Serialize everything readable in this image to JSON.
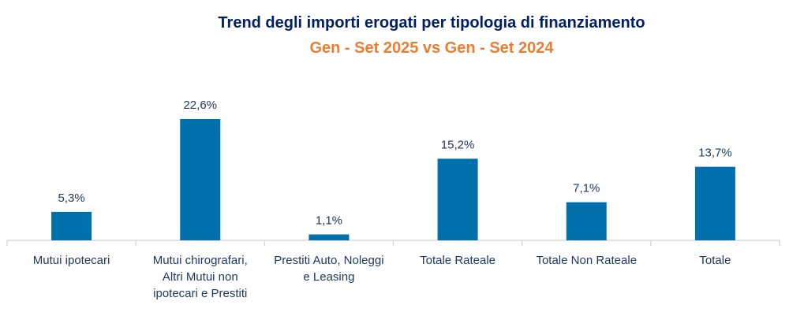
{
  "chart_data": {
    "type": "bar",
    "title": "Trend degli importi erogati per tipologia di finanziamento",
    "subtitle": "Gen - Set 2025 vs Gen - Set 2024",
    "categories": [
      [
        "Mutui ipotecari"
      ],
      [
        "Mutui chirografari,",
        "Altri Mutui non",
        "ipotecari e Prestiti"
      ],
      [
        "Prestiti Auto, Noleggi",
        "e Leasing"
      ],
      [
        "Totale Rateale"
      ],
      [
        "Totale Non Rateale"
      ],
      [
        "Totale"
      ]
    ],
    "values": [
      5.3,
      22.6,
      1.1,
      15.2,
      7.1,
      13.7
    ],
    "data_labels": [
      "5,3%",
      "22,6%",
      "1,1%",
      "15,2%",
      "7,1%",
      "13,7%"
    ],
    "xlabel": "",
    "ylabel": "",
    "ylim": [
      0,
      25
    ],
    "grid": false,
    "legend": "none",
    "colors": {
      "bar": "#0070ad",
      "title": "#002060",
      "subtitle": "#ed7d31",
      "labels": "#1f3864",
      "axis": "#d9d9d9"
    }
  }
}
